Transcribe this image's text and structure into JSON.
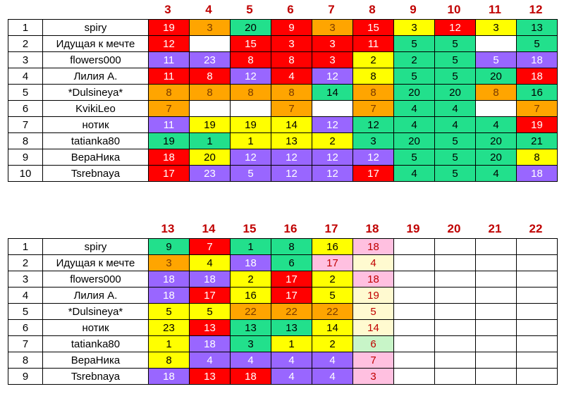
{
  "table1": {
    "headers": [
      "3",
      "4",
      "5",
      "6",
      "7",
      "8",
      "9",
      "10",
      "11",
      "12"
    ],
    "rows": [
      {
        "num": "1",
        "name": "spiry",
        "cells": [
          [
            "19",
            "r"
          ],
          [
            "3",
            "o"
          ],
          [
            "20",
            "g"
          ],
          [
            "9",
            "r"
          ],
          [
            "3",
            "o"
          ],
          [
            "15",
            "r"
          ],
          [
            "3",
            "y"
          ],
          [
            "12",
            "r"
          ],
          [
            "3",
            "y"
          ],
          [
            "13",
            "g"
          ]
        ]
      },
      {
        "num": "2",
        "name": "Идущая к мечте",
        "cells": [
          [
            "12",
            "r"
          ],
          [
            "",
            "w"
          ],
          [
            "15",
            "r"
          ],
          [
            "3",
            "r"
          ],
          [
            "3",
            "r"
          ],
          [
            "11",
            "r"
          ],
          [
            "5",
            "g"
          ],
          [
            "5",
            "g"
          ],
          [
            "",
            "w"
          ],
          [
            "5",
            "g"
          ]
        ]
      },
      {
        "num": "3",
        "name": "flowers000",
        "cells": [
          [
            "11",
            "p"
          ],
          [
            "23",
            "p"
          ],
          [
            "8",
            "r"
          ],
          [
            "8",
            "r"
          ],
          [
            "3",
            "r"
          ],
          [
            "2",
            "y"
          ],
          [
            "2",
            "g"
          ],
          [
            "5",
            "g"
          ],
          [
            "5",
            "p"
          ],
          [
            "18",
            "p"
          ]
        ]
      },
      {
        "num": "4",
        "name": "Лилия А.",
        "cells": [
          [
            "11",
            "r"
          ],
          [
            "8",
            "r"
          ],
          [
            "12",
            "p"
          ],
          [
            "4",
            "r"
          ],
          [
            "12",
            "p"
          ],
          [
            "8",
            "y"
          ],
          [
            "5",
            "g"
          ],
          [
            "5",
            "g"
          ],
          [
            "20",
            "g"
          ],
          [
            "18",
            "r"
          ]
        ]
      },
      {
        "num": "5",
        "name": "*Dulsineya*",
        "cells": [
          [
            "8",
            "o"
          ],
          [
            "8",
            "o"
          ],
          [
            "8",
            "o"
          ],
          [
            "8",
            "o"
          ],
          [
            "14",
            "g"
          ],
          [
            "8",
            "o"
          ],
          [
            "20",
            "g"
          ],
          [
            "20",
            "g"
          ],
          [
            "8",
            "o"
          ],
          [
            "16",
            "g"
          ]
        ]
      },
      {
        "num": "6",
        "name": "KvikiLeo",
        "cells": [
          [
            "7",
            "o"
          ],
          [
            "",
            "w"
          ],
          [
            "",
            "w"
          ],
          [
            "7",
            "o"
          ],
          [
            "",
            "w"
          ],
          [
            "7",
            "o"
          ],
          [
            "4",
            "g"
          ],
          [
            "4",
            "g"
          ],
          [
            "",
            "w"
          ],
          [
            "7",
            "o"
          ]
        ]
      },
      {
        "num": "7",
        "name": "нотик",
        "cells": [
          [
            "11",
            "p"
          ],
          [
            "19",
            "y"
          ],
          [
            "19",
            "y"
          ],
          [
            "14",
            "y"
          ],
          [
            "12",
            "p"
          ],
          [
            "12",
            "g"
          ],
          [
            "4",
            "g"
          ],
          [
            "4",
            "g"
          ],
          [
            "4",
            "g"
          ],
          [
            "19",
            "r"
          ]
        ]
      },
      {
        "num": "8",
        "name": "tatianka80",
        "cells": [
          [
            "19",
            "g"
          ],
          [
            "1",
            "g"
          ],
          [
            "1",
            "y"
          ],
          [
            "13",
            "y"
          ],
          [
            "2",
            "y"
          ],
          [
            "3",
            "g"
          ],
          [
            "20",
            "g"
          ],
          [
            "5",
            "g"
          ],
          [
            "20",
            "g"
          ],
          [
            "21",
            "g"
          ]
        ]
      },
      {
        "num": "9",
        "name": "ВераНика",
        "cells": [
          [
            "18",
            "r"
          ],
          [
            "20",
            "y"
          ],
          [
            "12",
            "p"
          ],
          [
            "12",
            "p"
          ],
          [
            "12",
            "p"
          ],
          [
            "12",
            "p"
          ],
          [
            "5",
            "g"
          ],
          [
            "5",
            "g"
          ],
          [
            "20",
            "g"
          ],
          [
            "8",
            "y"
          ]
        ]
      },
      {
        "num": "10",
        "name": "Tsrebnaya",
        "cells": [
          [
            "17",
            "r"
          ],
          [
            "23",
            "p"
          ],
          [
            "5",
            "p"
          ],
          [
            "12",
            "p"
          ],
          [
            "12",
            "p"
          ],
          [
            "17",
            "r"
          ],
          [
            "4",
            "g"
          ],
          [
            "5",
            "g"
          ],
          [
            "4",
            "g"
          ],
          [
            "18",
            "p"
          ]
        ]
      }
    ]
  },
  "table2": {
    "headers": [
      "13",
      "14",
      "15",
      "16",
      "17",
      "18",
      "19",
      "20",
      "21",
      "22"
    ],
    "rows": [
      {
        "num": "1",
        "name": "spiry",
        "cells": [
          [
            "9",
            "g"
          ],
          [
            "7",
            "r"
          ],
          [
            "1",
            "g"
          ],
          [
            "8",
            "g"
          ],
          [
            "16",
            "y"
          ],
          [
            "18",
            "k"
          ],
          [
            "",
            "w"
          ],
          [
            "",
            "w"
          ],
          [
            "",
            "w"
          ],
          [
            "",
            "w"
          ]
        ]
      },
      {
        "num": "2",
        "name": "Идущая к мечте",
        "cells": [
          [
            "3",
            "o"
          ],
          [
            "4",
            "y"
          ],
          [
            "18",
            "p"
          ],
          [
            "6",
            "g"
          ],
          [
            "17",
            "k"
          ],
          [
            "4",
            "c"
          ],
          [
            "",
            "w"
          ],
          [
            "",
            "w"
          ],
          [
            "",
            "w"
          ],
          [
            "",
            "w"
          ]
        ]
      },
      {
        "num": "3",
        "name": "flowers000",
        "cells": [
          [
            "18",
            "p"
          ],
          [
            "18",
            "p"
          ],
          [
            "2",
            "y"
          ],
          [
            "17",
            "r"
          ],
          [
            "2",
            "y"
          ],
          [
            "18",
            "k"
          ],
          [
            "",
            "w"
          ],
          [
            "",
            "w"
          ],
          [
            "",
            "w"
          ],
          [
            "",
            "w"
          ]
        ]
      },
      {
        "num": "4",
        "name": "Лилия А.",
        "cells": [
          [
            "18",
            "p"
          ],
          [
            "17",
            "r"
          ],
          [
            "16",
            "y"
          ],
          [
            "17",
            "r"
          ],
          [
            "5",
            "y"
          ],
          [
            "19",
            "c"
          ],
          [
            "",
            "w"
          ],
          [
            "",
            "w"
          ],
          [
            "",
            "w"
          ],
          [
            "",
            "w"
          ]
        ]
      },
      {
        "num": "5",
        "name": "*Dulsineya*",
        "cells": [
          [
            "5",
            "y"
          ],
          [
            "5",
            "y"
          ],
          [
            "22",
            "o"
          ],
          [
            "22",
            "o"
          ],
          [
            "22",
            "o"
          ],
          [
            "5",
            "c"
          ],
          [
            "",
            "w"
          ],
          [
            "",
            "w"
          ],
          [
            "",
            "w"
          ],
          [
            "",
            "w"
          ]
        ]
      },
      {
        "num": "6",
        "name": "нотик",
        "cells": [
          [
            "23",
            "y"
          ],
          [
            "13",
            "r"
          ],
          [
            "13",
            "g"
          ],
          [
            "13",
            "g"
          ],
          [
            "14",
            "y"
          ],
          [
            "14",
            "c"
          ],
          [
            "",
            "w"
          ],
          [
            "",
            "w"
          ],
          [
            "",
            "w"
          ],
          [
            "",
            "w"
          ]
        ]
      },
      {
        "num": "7",
        "name": "tatianka80",
        "cells": [
          [
            "1",
            "y"
          ],
          [
            "18",
            "p"
          ],
          [
            "3",
            "g"
          ],
          [
            "1",
            "y"
          ],
          [
            "2",
            "y"
          ],
          [
            "6",
            "l"
          ],
          [
            "",
            "w"
          ],
          [
            "",
            "w"
          ],
          [
            "",
            "w"
          ],
          [
            "",
            "w"
          ]
        ]
      },
      {
        "num": "8",
        "name": "ВераНика",
        "cells": [
          [
            "8",
            "y"
          ],
          [
            "4",
            "p"
          ],
          [
            "4",
            "p"
          ],
          [
            "4",
            "p"
          ],
          [
            "4",
            "p"
          ],
          [
            "7",
            "k"
          ],
          [
            "",
            "w"
          ],
          [
            "",
            "w"
          ],
          [
            "",
            "w"
          ],
          [
            "",
            "w"
          ]
        ]
      },
      {
        "num": "9",
        "name": "Tsrebnaya",
        "cells": [
          [
            "18",
            "p"
          ],
          [
            "13",
            "r"
          ],
          [
            "18",
            "r"
          ],
          [
            "4",
            "p"
          ],
          [
            "4",
            "p"
          ],
          [
            "3",
            "k"
          ],
          [
            "",
            "w"
          ],
          [
            "",
            "w"
          ],
          [
            "",
            "w"
          ],
          [
            "",
            "w"
          ]
        ]
      }
    ]
  }
}
